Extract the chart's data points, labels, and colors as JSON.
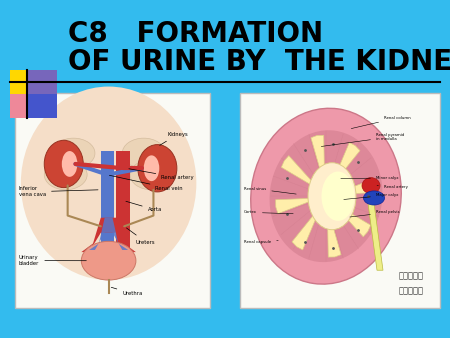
{
  "bg_color": "#33BBEE",
  "title_line1": "C8   FORMATION",
  "title_line2": "OF URINE BY  THE KIDNEY",
  "title_color": "#000000",
  "title_fontsize": 20,
  "underline_color": "#000000",
  "image2_caption_line1": "右赏刈射面",
  "image2_caption_line2": "内部结构图",
  "logo_yellow": "#FFD700",
  "logo_purple": "#7766BB",
  "logo_pink": "#EE8899",
  "logo_blue": "#4455CC",
  "img1_bg": "#FAFAF5",
  "img2_bg": "#FAFAF5",
  "img1_border": "#BBBBBB",
  "img2_border": "#BBBBBB"
}
